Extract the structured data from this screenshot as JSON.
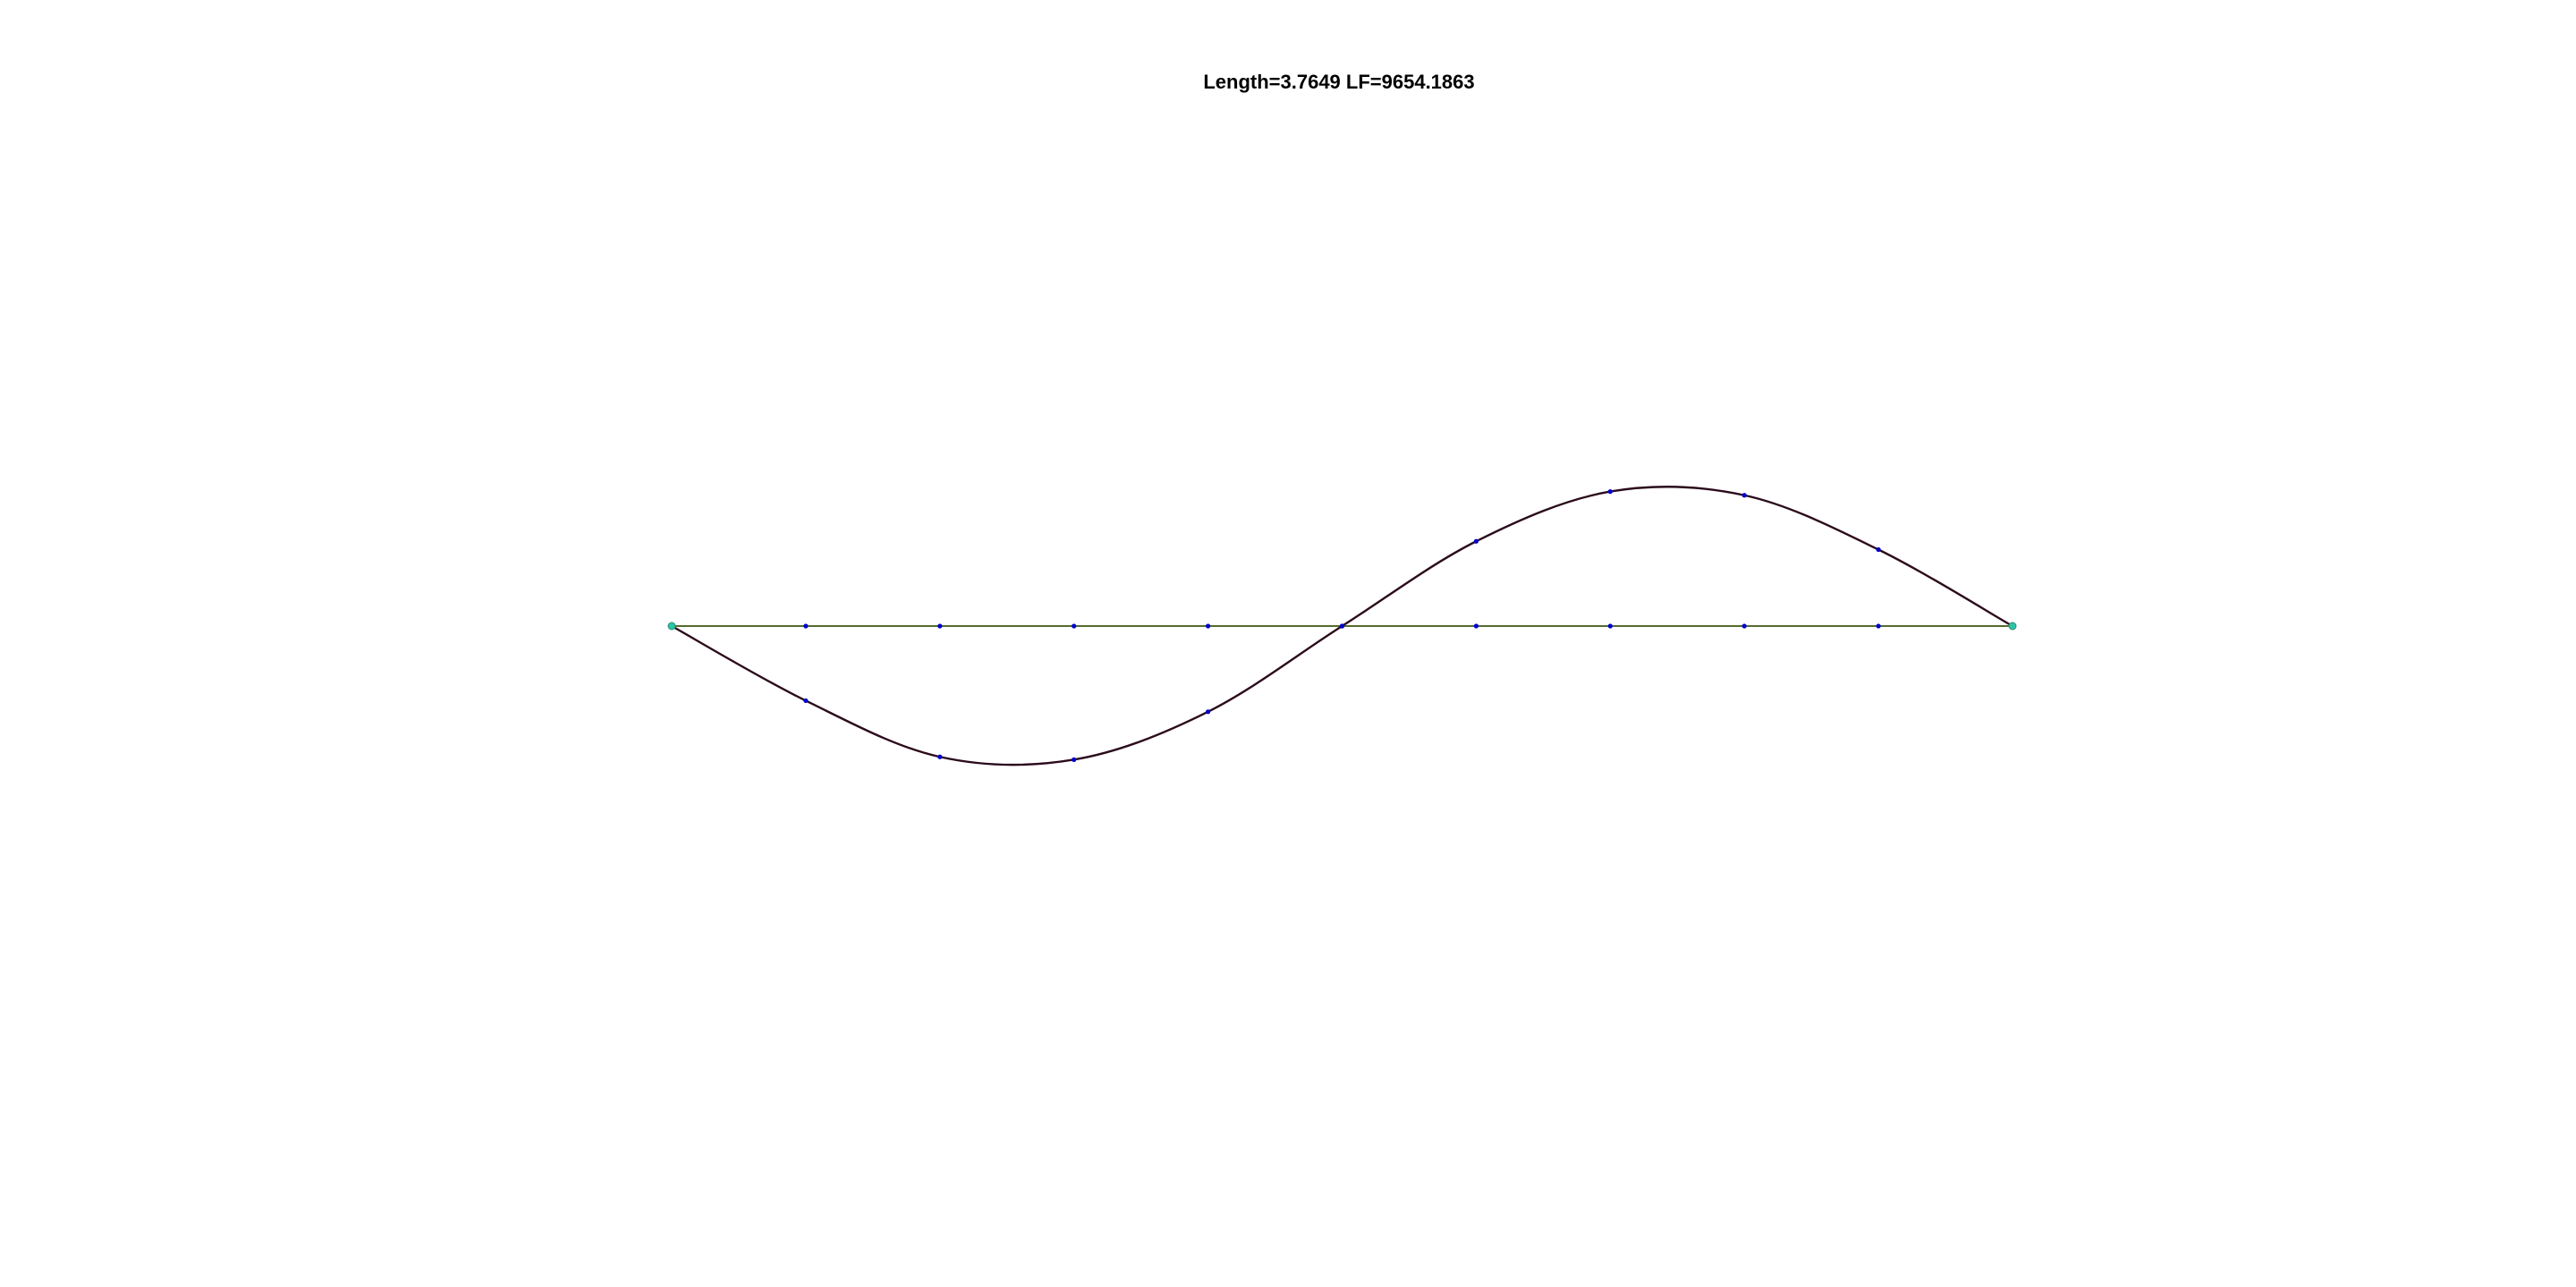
{
  "chart_data": {
    "type": "line",
    "title": "Length=3.7649 LF=9654.1863",
    "xlabel": "",
    "ylabel": "",
    "grid": false,
    "axes_visible": false,
    "xlim": [
      0,
      1
    ],
    "ylim": [
      -0.75,
      0.75
    ],
    "series": [
      {
        "role": "baseline",
        "color": "#556b2f",
        "x": [
          0,
          0.1,
          0.2,
          0.3,
          0.4,
          0.5,
          0.6,
          0.7,
          0.8,
          0.9,
          1.0
        ],
        "y": [
          0,
          0,
          0,
          0,
          0,
          0,
          0,
          0,
          0,
          0,
          0
        ],
        "marker_color": "#0000cc"
      },
      {
        "role": "curve",
        "color": "#2b0b1c",
        "x": [
          0,
          0.1,
          0.2,
          0.3,
          0.4,
          0.5,
          0.6,
          0.7,
          0.8,
          0.9,
          1.0
        ],
        "y": [
          0,
          -0.081,
          -0.142,
          -0.145,
          -0.093,
          0,
          0.092,
          0.146,
          0.142,
          0.083,
          0
        ],
        "marker_color": "#0000cc"
      }
    ],
    "endpoints": {
      "x": [
        0,
        1.0
      ],
      "y": [
        0,
        0
      ],
      "color": "#2ec4a6"
    }
  }
}
